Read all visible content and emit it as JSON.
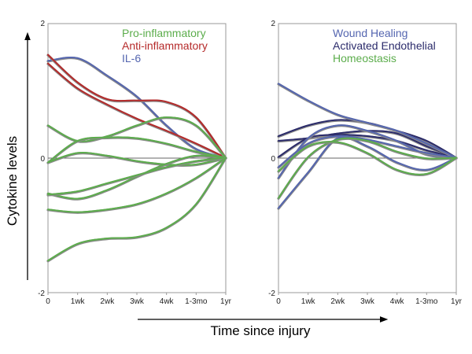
{
  "chart_data": [
    {
      "type": "line",
      "panel": "left",
      "xlabel": "Time since injury",
      "ylabel": "Cytokine levels",
      "categories": [
        "0",
        "1wk",
        "2wk",
        "3wk",
        "4wk",
        "1-3mo",
        "1yr"
      ],
      "ylim": [
        -2,
        2
      ],
      "yticks": [
        "2",
        "0",
        "-2"
      ],
      "grid": false,
      "legend_placement": "top-right",
      "legend": [
        {
          "label": "Pro-inflammatory",
          "color": "#5cad4c"
        },
        {
          "label": "Anti-inflammatory",
          "color": "#b52a2a"
        },
        {
          "label": "IL-6",
          "color": "#5566b0"
        }
      ],
      "series": [
        {
          "group": 2,
          "values": [
            1.44,
            1.48,
            1.22,
            0.91,
            0.48,
            0.13,
            0
          ]
        },
        {
          "group": 1,
          "values": [
            1.53,
            1.12,
            0.87,
            0.85,
            0.83,
            0.6,
            0
          ]
        },
        {
          "group": 1,
          "values": [
            1.4,
            1.03,
            0.79,
            0.58,
            0.4,
            0.21,
            0
          ]
        },
        {
          "group": 0,
          "values": [
            0.48,
            0.25,
            0.32,
            0.48,
            0.6,
            0.48,
            0
          ]
        },
        {
          "group": 0,
          "values": [
            -0.07,
            0.25,
            0.3,
            0.29,
            0.21,
            0.09,
            0
          ]
        },
        {
          "group": 0,
          "values": [
            -0.07,
            0.07,
            0.03,
            -0.05,
            -0.1,
            -0.1,
            0
          ]
        },
        {
          "group": 0,
          "values": [
            -0.53,
            -0.61,
            -0.48,
            -0.28,
            -0.09,
            0.03,
            0
          ]
        },
        {
          "group": 0,
          "values": [
            -0.55,
            -0.5,
            -0.38,
            -0.26,
            -0.14,
            -0.05,
            0
          ]
        },
        {
          "group": 0,
          "values": [
            -0.77,
            -0.81,
            -0.77,
            -0.69,
            -0.53,
            -0.3,
            0
          ]
        },
        {
          "group": 0,
          "values": [
            -1.53,
            -1.28,
            -1.2,
            -1.18,
            -1.04,
            -0.69,
            0
          ]
        }
      ]
    },
    {
      "type": "line",
      "panel": "right",
      "categories": [
        "0",
        "1wk",
        "2wk",
        "3wk",
        "4wk",
        "1-3mo",
        "1yr"
      ],
      "ylim": [
        -2,
        2
      ],
      "yticks": [
        "2",
        "0",
        "-2"
      ],
      "grid": false,
      "legend_placement": "top-right",
      "legend": [
        {
          "label": "Wound Healing",
          "color": "#5566b0"
        },
        {
          "label": "Activated Endothelial",
          "color": "#2b2b6b"
        },
        {
          "label": "Homeostasis",
          "color": "#5cad4c"
        }
      ],
      "series": [
        {
          "group": 1,
          "values": [
            0.32,
            0.48,
            0.56,
            0.52,
            0.4,
            0.25,
            0
          ]
        },
        {
          "group": 1,
          "values": [
            0.25,
            0.29,
            0.36,
            0.4,
            0.36,
            0.17,
            0
          ]
        },
        {
          "group": 1,
          "values": [
            0.01,
            0.29,
            0.34,
            0.32,
            0.25,
            0.11,
            0
          ]
        },
        {
          "group": 0,
          "values": [
            1.1,
            0.85,
            0.64,
            0.52,
            0.4,
            0.21,
            0
          ]
        },
        {
          "group": 0,
          "values": [
            -0.3,
            0.29,
            0.48,
            0.4,
            0.25,
            0.05,
            0
          ]
        },
        {
          "group": 0,
          "values": [
            -0.14,
            0.21,
            0.32,
            0.27,
            0.17,
            0.07,
            0
          ]
        },
        {
          "group": 0,
          "values": [
            -0.75,
            -0.22,
            0.29,
            0.17,
            -0.07,
            -0.18,
            0
          ]
        },
        {
          "group": 2,
          "values": [
            -0.6,
            0.01,
            0.27,
            0.25,
            0.09,
            -0.01,
            0
          ]
        },
        {
          "group": 2,
          "values": [
            -0.2,
            0.17,
            0.23,
            0.07,
            -0.18,
            -0.24,
            0
          ]
        }
      ]
    }
  ]
}
